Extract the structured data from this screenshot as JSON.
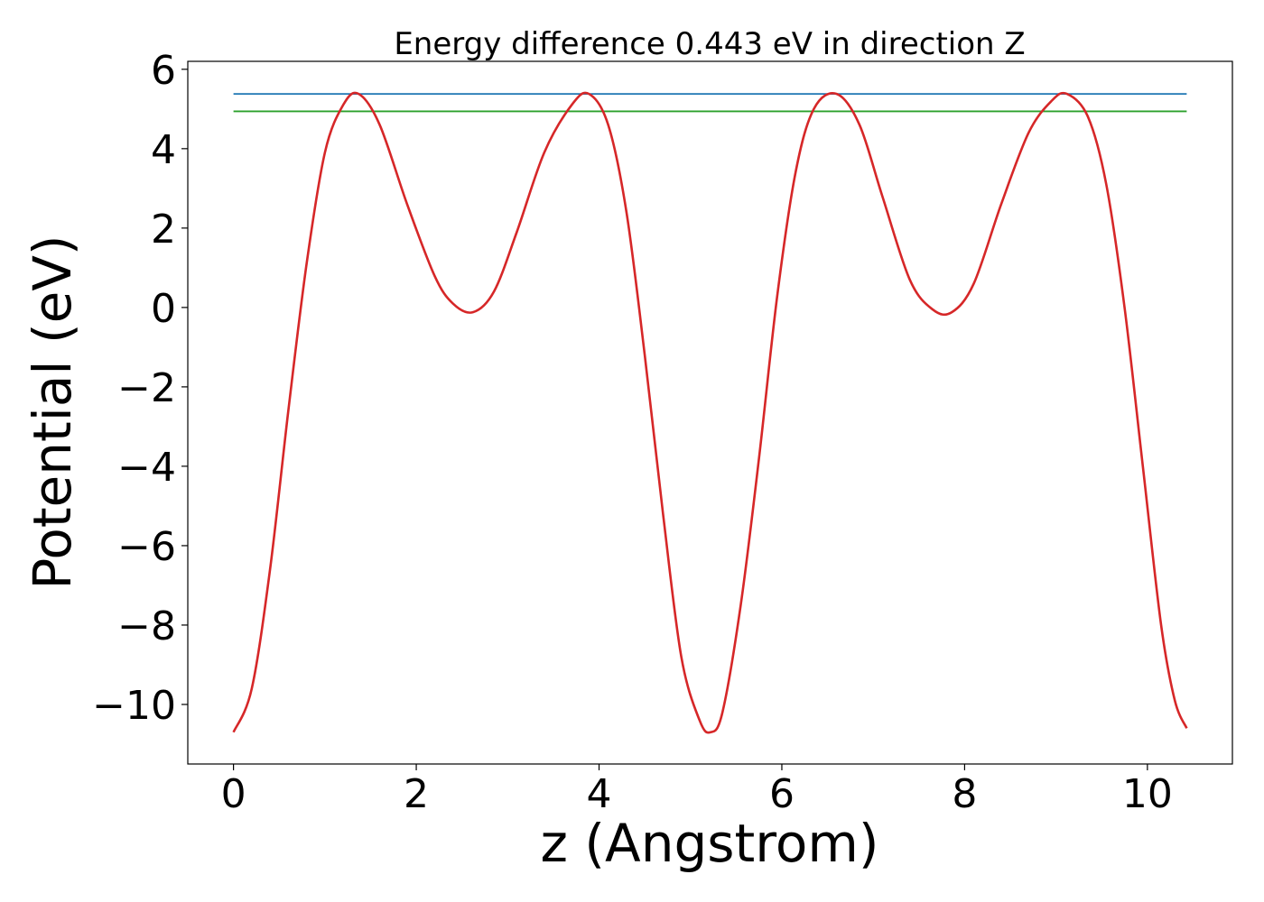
{
  "chart_data": {
    "type": "line",
    "title": "Energy difference 0.443 eV in direction Z",
    "xlabel": "z (Angstrom)",
    "ylabel": "Potential (eV)",
    "xlim": [
      -0.5,
      10.93
    ],
    "ylim": [
      -11.5,
      6.2
    ],
    "x_ticks": [
      0,
      2,
      4,
      6,
      8,
      10
    ],
    "y_ticks": [
      -10,
      -8,
      -6,
      -4,
      -2,
      0,
      2,
      4,
      6
    ],
    "x_tick_labels": [
      "0",
      "2",
      "4",
      "6",
      "8",
      "10"
    ],
    "y_tick_labels": [
      "−10",
      "−8",
      "−6",
      "−4",
      "−2",
      "0",
      "2",
      "4",
      "6"
    ],
    "grid": false,
    "legend": "none",
    "series": [
      {
        "color": "#1f77b4",
        "x": [
          0,
          10.43
        ],
        "y": [
          5.38,
          5.38
        ]
      },
      {
        "color": "#2ca02c",
        "x": [
          0,
          10.43
        ],
        "y": [
          4.94,
          4.94
        ]
      },
      {
        "color": "#d62728",
        "x": [
          0,
          0.2,
          0.4,
          0.6,
          0.8,
          1.0,
          1.2,
          1.37,
          1.6,
          1.9,
          2.2,
          2.4,
          2.62,
          2.85,
          3.1,
          3.4,
          3.7,
          3.89,
          4.1,
          4.3,
          4.5,
          4.7,
          4.9,
          5.1,
          5.22,
          5.35,
          5.55,
          5.75,
          5.95,
          6.15,
          6.35,
          6.6,
          6.85,
          7.1,
          7.4,
          7.65,
          7.86,
          8.1,
          8.4,
          8.7,
          8.95,
          9.12,
          9.35,
          9.55,
          9.75,
          9.95,
          10.15,
          10.3,
          10.43
        ],
        "y": [
          -10.7,
          -9.6,
          -6.6,
          -2.6,
          1.1,
          3.9,
          5.1,
          5.38,
          4.6,
          2.6,
          0.8,
          0.1,
          -0.12,
          0.4,
          1.9,
          3.9,
          5.1,
          5.38,
          4.6,
          2.4,
          -1.2,
          -5.2,
          -8.8,
          -10.4,
          -10.7,
          -10.2,
          -7.5,
          -3.8,
          0.3,
          3.4,
          5.0,
          5.38,
          4.6,
          2.8,
          0.7,
          -0.05,
          -0.12,
          0.6,
          2.6,
          4.4,
          5.2,
          5.38,
          4.8,
          3.1,
          0.0,
          -4.0,
          -8.0,
          -9.9,
          -10.6
        ]
      }
    ]
  }
}
